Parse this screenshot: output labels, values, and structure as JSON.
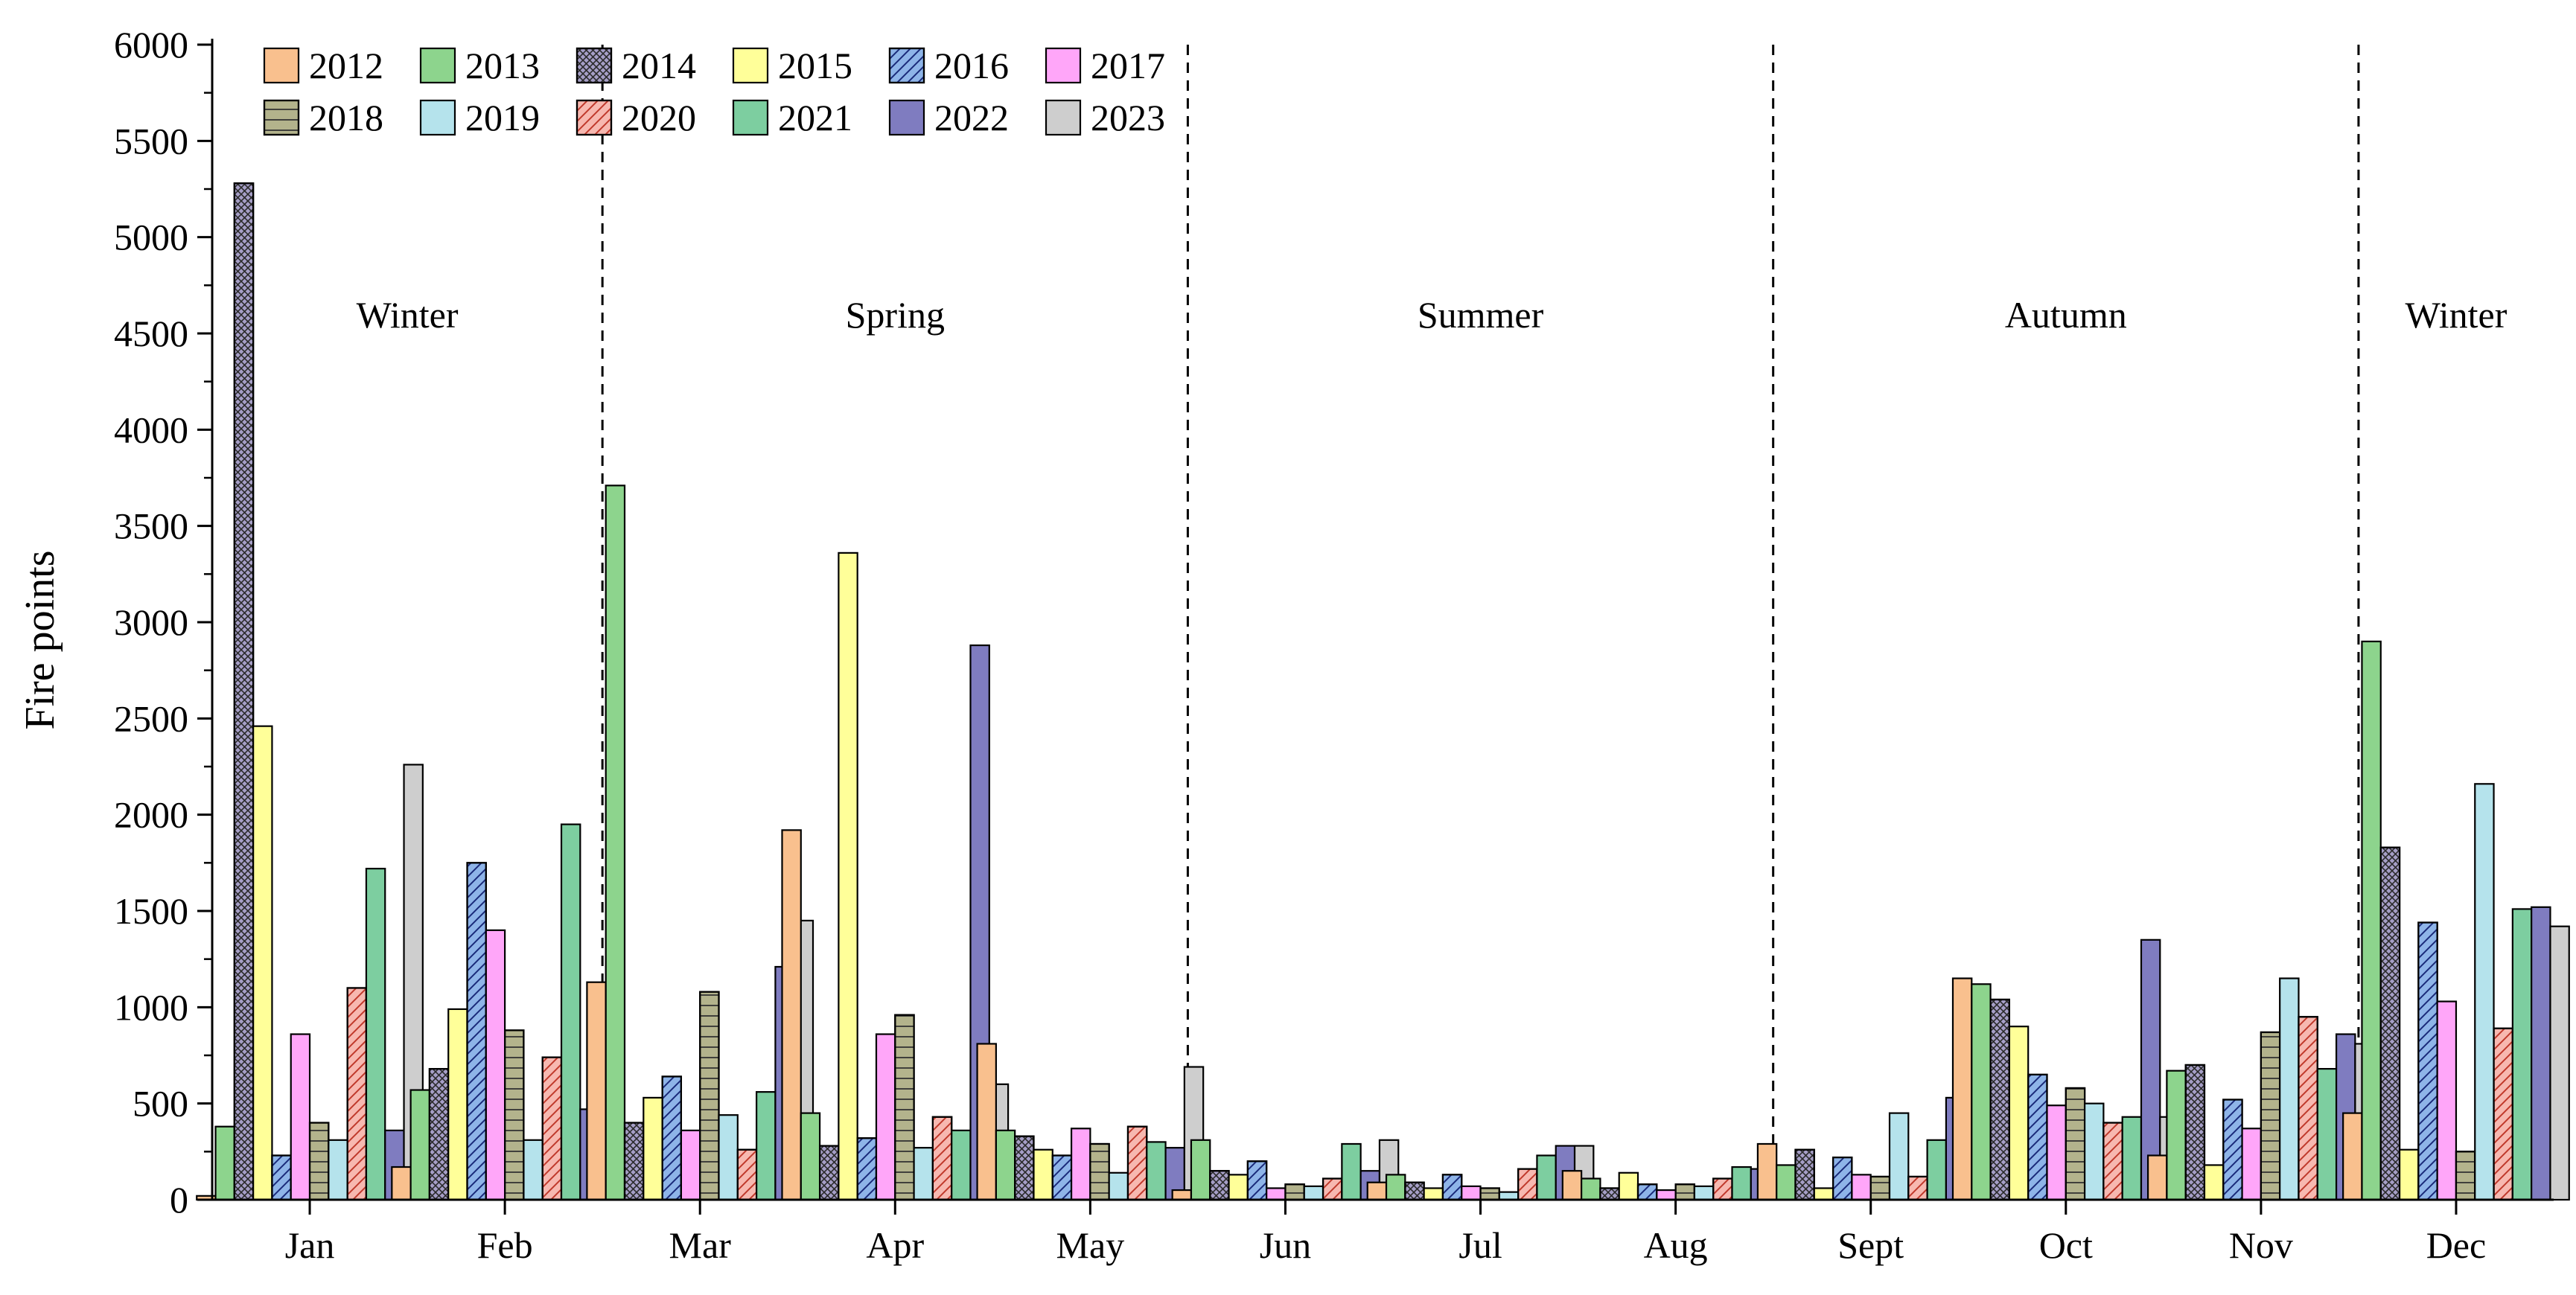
{
  "chart_data": {
    "type": "bar",
    "ylabel": "Fire points",
    "xlabel": "",
    "ylim": [
      0,
      6000
    ],
    "yticks": [
      0,
      500,
      1000,
      1500,
      2000,
      2500,
      3000,
      3500,
      4000,
      4500,
      5000,
      5500,
      6000
    ],
    "categories": [
      "Jan",
      "Feb",
      "Mar",
      "Apr",
      "May",
      "Jun",
      "Jul",
      "Aug",
      "Sept",
      "Oct",
      "Nov",
      "Dec"
    ],
    "grid": false,
    "legend_position": "top-left",
    "season_labels": [
      {
        "text": "Winter"
      },
      {
        "text": "Spring"
      },
      {
        "text": "Summer"
      },
      {
        "text": "Autumn"
      },
      {
        "text": "Winter"
      }
    ],
    "series": [
      {
        "name": "2012",
        "color": "#F9C08E",
        "pattern": "solid",
        "values": [
          20,
          170,
          1130,
          1920,
          810,
          50,
          90,
          150,
          290,
          1150,
          230,
          450
        ]
      },
      {
        "name": "2013",
        "color": "#8DD48D",
        "pattern": "solid",
        "values": [
          380,
          570,
          3710,
          450,
          360,
          310,
          130,
          110,
          180,
          1120,
          670,
          2900
        ]
      },
      {
        "name": "2014",
        "color": "#A59EC6",
        "pattern": "crosshatch",
        "values": [
          5280,
          680,
          400,
          280,
          330,
          150,
          90,
          60,
          260,
          1040,
          700,
          1830
        ]
      },
      {
        "name": "2015",
        "color": "#FFFF99",
        "pattern": "solid",
        "values": [
          2460,
          990,
          530,
          3360,
          260,
          130,
          60,
          140,
          60,
          900,
          180,
          260
        ]
      },
      {
        "name": "2016",
        "color": "#8EB4E8",
        "pattern": "diagonal",
        "values": [
          230,
          1750,
          640,
          320,
          230,
          200,
          130,
          80,
          220,
          650,
          520,
          1440
        ]
      },
      {
        "name": "2017",
        "color": "#FFA6F9",
        "pattern": "solid",
        "values": [
          860,
          1400,
          360,
          860,
          370,
          60,
          70,
          50,
          130,
          490,
          370,
          1030
        ]
      },
      {
        "name": "2018",
        "color": "#B3B38C",
        "pattern": "grid",
        "values": [
          400,
          880,
          1080,
          960,
          290,
          80,
          60,
          80,
          120,
          580,
          870,
          250
        ]
      },
      {
        "name": "2019",
        "color": "#B5E3EC",
        "pattern": "solid",
        "values": [
          310,
          310,
          440,
          270,
          140,
          70,
          40,
          70,
          450,
          500,
          1150,
          2160
        ]
      },
      {
        "name": "2020",
        "color": "#F7B8B0",
        "pattern": "diagonal-red",
        "values": [
          1100,
          740,
          260,
          430,
          380,
          110,
          160,
          110,
          120,
          400,
          950,
          890
        ]
      },
      {
        "name": "2021",
        "color": "#7DCEA0",
        "pattern": "solid",
        "values": [
          1720,
          1950,
          560,
          360,
          300,
          290,
          230,
          170,
          310,
          430,
          680,
          1510
        ]
      },
      {
        "name": "2022",
        "color": "#7F7CC0",
        "pattern": "solid",
        "values": [
          360,
          470,
          1210,
          2880,
          270,
          150,
          280,
          160,
          530,
          1350,
          860,
          1520
        ]
      },
      {
        "name": "2023",
        "color": "#CECECE",
        "pattern": "solid",
        "values": [
          2260,
          1080,
          1450,
          600,
          690,
          310,
          280,
          50,
          250,
          430,
          810,
          1420
        ]
      }
    ]
  }
}
